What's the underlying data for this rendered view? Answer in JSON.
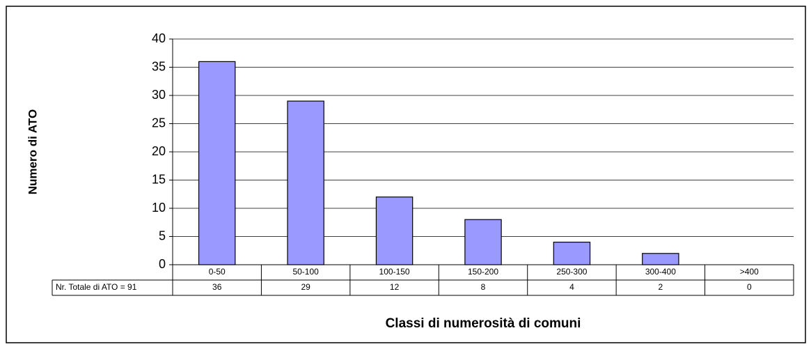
{
  "chart_data": {
    "type": "bar",
    "categories": [
      "0-50",
      "50-100",
      "100-150",
      "150-200",
      "250-300",
      "300-400",
      ">400"
    ],
    "values": [
      36,
      29,
      12,
      8,
      4,
      2,
      0
    ],
    "color": "#9999ff",
    "ylim": [
      0,
      40
    ],
    "yticks": [
      0,
      5,
      10,
      15,
      20,
      25,
      30,
      35,
      40
    ],
    "grid": true,
    "y_label": "Numero di ATO",
    "x_label": "Classi di numerosità di comuni",
    "table_label": "Nr. Totale di ATO = 91"
  }
}
